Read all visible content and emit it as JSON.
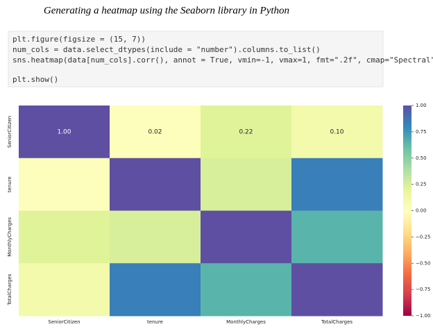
{
  "caption": "Generating a heatmap using the Seaborn library in Python",
  "code": {
    "lines": [
      "plt.figure(figsize = (15, 7))",
      "num_cols = data.select_dtypes(include = \"number\").columns.to_list()",
      "sns.heatmap(data[num_cols].corr(), annot = True, vmin=-1, vmax=1, fmt=\".2f\", cmap=\"Spectral\")",
      "plt.show()"
    ]
  },
  "chart_data": {
    "type": "heatmap",
    "categories": [
      "SeniorCitizen",
      "tenure",
      "MonthlyCharges",
      "TotalCharges"
    ],
    "values": [
      [
        1,
        0.02,
        0.22,
        0.1
      ],
      [
        0.02,
        1,
        0.25,
        0.83
      ],
      [
        0.22,
        0.25,
        1,
        0.65
      ],
      [
        0.1,
        0.83,
        0.65,
        1
      ]
    ],
    "value_labels": [
      [
        "1.00",
        "0.02",
        "0.22",
        "0.10"
      ],
      [
        null,
        null,
        null,
        null
      ],
      [
        null,
        null,
        null,
        null
      ],
      [
        null,
        null,
        null,
        null
      ]
    ],
    "colors": [
      "#9e0142",
      "#d53e4f",
      "#f46d43",
      "#fdae61",
      "#fee08b",
      "#ffffbf",
      "#e6f598",
      "#abdda4",
      "#66c2a5",
      "#3288bd",
      "#5e4fa2"
    ],
    "clim": [
      -1,
      1
    ],
    "cticks": [
      {
        "value": 1,
        "label": "1.00"
      },
      {
        "value": 0.75,
        "label": "0.75"
      },
      {
        "value": 0.5,
        "label": "0.50"
      },
      {
        "value": 0.25,
        "label": "0.25"
      },
      {
        "value": 0,
        "label": "0.00"
      },
      {
        "value": -0.25,
        "label": "−0.25"
      },
      {
        "value": -0.5,
        "label": "−0.50"
      },
      {
        "value": -0.75,
        "label": "−0.75"
      },
      {
        "value": -1,
        "label": "−1.00"
      }
    ]
  }
}
